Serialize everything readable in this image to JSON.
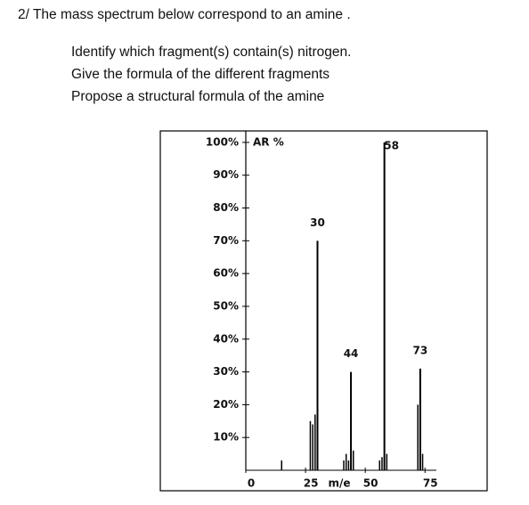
{
  "question": {
    "title": "2/ The mass spectrum below correspond to an amine .",
    "items": [
      "Identify which fragment(s) contain(s) nitrogen.",
      "Give the formula of the different fragments",
      "Propose a structural formula of the amine"
    ]
  },
  "chart_data": {
    "type": "bar",
    "y_label": "AR %",
    "x_label": "m/e",
    "x": [
      15,
      27,
      28,
      29,
      30,
      41,
      42,
      43,
      44,
      45,
      56,
      57,
      58,
      59,
      72,
      73,
      74
    ],
    "values": [
      3,
      15,
      14,
      17,
      70,
      3,
      5,
      3,
      30,
      6,
      3,
      4,
      100,
      5,
      20,
      31,
      5
    ],
    "labeled_peaks": [
      4,
      8,
      12,
      15
    ],
    "xlim": [
      0,
      101
    ],
    "ylim": [
      0,
      103.5
    ],
    "xticks": [
      0,
      25,
      50,
      75
    ],
    "yticks": [
      {
        "value": 10,
        "label": "10%"
      },
      {
        "value": 20,
        "label": "20%"
      },
      {
        "value": 30,
        "label": "30%"
      },
      {
        "value": 40,
        "label": "40%"
      },
      {
        "value": 50,
        "label": "50%"
      },
      {
        "value": 60,
        "label": "60%"
      },
      {
        "value": 70,
        "label": "70%"
      },
      {
        "value": 80,
        "label": "80%"
      },
      {
        "value": 90,
        "label": "90%"
      },
      {
        "value": 100,
        "label": "100%"
      }
    ],
    "color": "#000000"
  }
}
